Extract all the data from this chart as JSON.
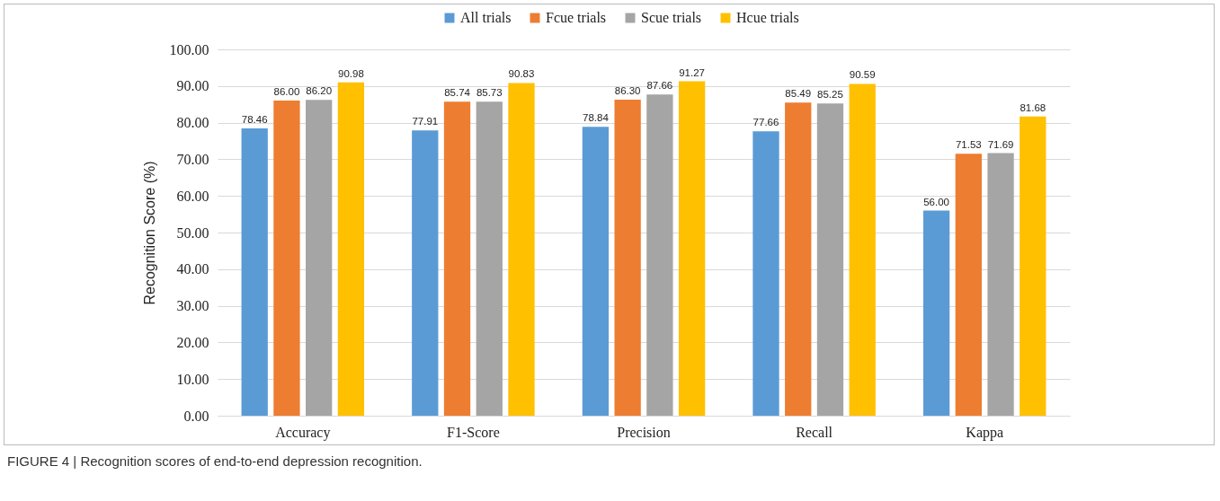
{
  "chart_data": {
    "type": "bar",
    "ylabel": "Recognition Score (%)",
    "categories": [
      "Accuracy",
      "F1-Score",
      "Precision",
      "Recall",
      "Kappa"
    ],
    "series": [
      {
        "name": "All trials",
        "color": "#5b9bd5",
        "values": [
          78.46,
          77.91,
          78.84,
          77.66,
          56
        ],
        "value_labels": [
          "78.46",
          "77.91",
          "78.84",
          "77.66",
          "56.00"
        ]
      },
      {
        "name": "Fcue trials",
        "color": "#ed7d31",
        "values": [
          86,
          85.74,
          86.3,
          85.49,
          71.53
        ],
        "value_labels": [
          "86.00",
          "85.74",
          "86.30",
          "85.49",
          "71.53"
        ]
      },
      {
        "name": "Scue trials",
        "color": "#a5a5a5",
        "values": [
          86.2,
          85.73,
          87.66,
          85.25,
          71.69
        ],
        "value_labels": [
          "86.20",
          "85.73",
          "87.66",
          "85.25",
          "71.69"
        ]
      },
      {
        "name": "Hcue trials",
        "color": "#ffc000",
        "values": [
          90.98,
          90.83,
          91.27,
          90.59,
          81.68
        ],
        "value_labels": [
          "90.98",
          "90.83",
          "91.27",
          "90.59",
          "81.68"
        ]
      }
    ],
    "ylim": [
      0,
      100
    ],
    "yticks": [
      {
        "value": 0,
        "label": "0.00"
      },
      {
        "value": 10,
        "label": "10.00"
      },
      {
        "value": 20,
        "label": "20.00"
      },
      {
        "value": 30,
        "label": "30.00"
      },
      {
        "value": 40,
        "label": "40.00"
      },
      {
        "value": 50,
        "label": "50.00"
      },
      {
        "value": 60,
        "label": "60.00"
      },
      {
        "value": 70,
        "label": "70.00"
      },
      {
        "value": 80,
        "label": "80.00"
      },
      {
        "value": 90,
        "label": "90.00"
      },
      {
        "value": 100,
        "label": "100.00"
      }
    ],
    "grid": "y",
    "legend": "top",
    "annotations": [
      "FIGURE 4 | Recognition scores of end-to-end depression recognition."
    ]
  }
}
